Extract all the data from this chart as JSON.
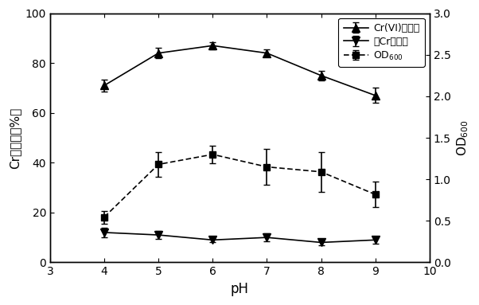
{
  "ph": [
    4,
    5,
    6,
    7,
    8,
    9
  ],
  "cr6_removal": [
    71,
    84,
    87,
    84,
    75,
    67
  ],
  "cr6_err": [
    2.5,
    2.0,
    1.5,
    1.5,
    2.0,
    3.0
  ],
  "total_cr_removal": [
    12,
    11,
    9,
    10,
    8,
    9
  ],
  "total_cr_err": [
    2.0,
    1.5,
    1.0,
    1.5,
    1.0,
    1.5
  ],
  "od600_right": [
    0.545,
    1.18,
    1.3,
    1.15,
    1.09,
    0.818
  ],
  "od600_err_right": [
    0.076,
    0.152,
    0.106,
    0.212,
    0.242,
    0.152
  ],
  "xlabel": "pH",
  "ylabel_left": "Cr去除率（%）",
  "ylabel_right": "OD$_{600}$",
  "legend_cr6": "Cr(VI)去除率",
  "legend_total": "总Cr去除率",
  "legend_od": "OD$_{600}$",
  "xlim": [
    3,
    10
  ],
  "ylim_left": [
    0,
    100
  ],
  "ylim_right": [
    0.0,
    3.0
  ],
  "xticks": [
    3,
    4,
    5,
    6,
    7,
    8,
    9,
    10
  ],
  "yticks_left": [
    0,
    20,
    40,
    60,
    80,
    100
  ],
  "yticks_right": [
    0.0,
    0.5,
    1.0,
    1.5,
    2.0,
    2.5,
    3.0
  ],
  "line_color": "#000000",
  "bg_color": "#ffffff"
}
